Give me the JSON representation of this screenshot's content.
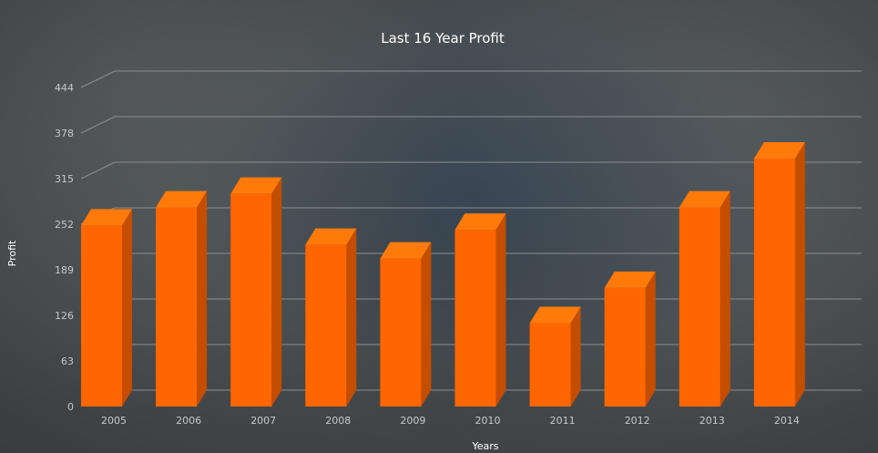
{
  "chart_data": {
    "type": "bar",
    "title": "Last 16 Year Profit",
    "xlabel": "Years",
    "ylabel": "Profit",
    "categories": [
      "2005",
      "2006",
      "2007",
      "2008",
      "2009",
      "2010",
      "2011",
      "2012",
      "2013",
      "2014"
    ],
    "values": [
      252,
      277,
      296,
      225,
      206,
      246,
      116,
      165,
      277,
      345
    ],
    "yticks": [
      "0",
      "63",
      "126",
      "189",
      "252",
      "315",
      "378",
      "444"
    ],
    "ylim": [
      0,
      444
    ],
    "grid": true,
    "legend": "none",
    "colors": {
      "front": "#ff6600",
      "top": "#ff7a0a",
      "side": "#c44d00"
    }
  }
}
